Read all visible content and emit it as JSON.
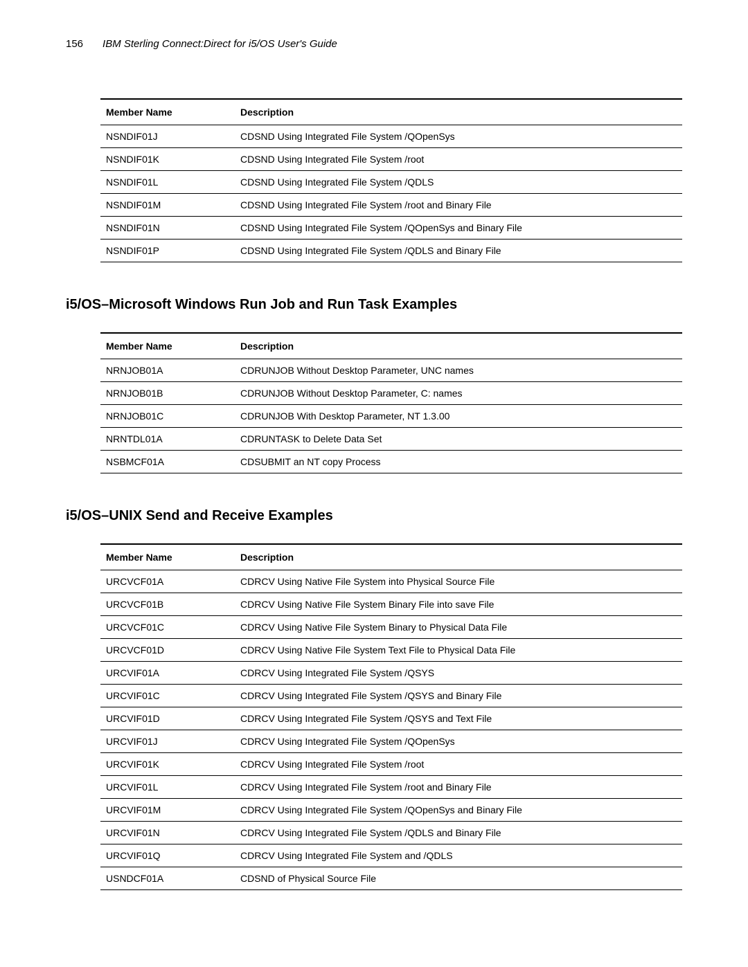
{
  "header": {
    "page_number": "156",
    "doc_title": "IBM Sterling Connect:Direct for i5/OS User's Guide"
  },
  "tables": [
    {
      "columns": [
        "Member Name",
        "Description"
      ],
      "rows": [
        [
          "NSNDIF01J",
          "CDSND Using Integrated File System /QOpenSys"
        ],
        [
          "NSNDIF01K",
          "CDSND Using Integrated File System /root"
        ],
        [
          "NSNDIF01L",
          "CDSND Using Integrated File System /QDLS"
        ],
        [
          "NSNDIF01M",
          "CDSND Using Integrated File System /root and Binary File"
        ],
        [
          "NSNDIF01N",
          "CDSND Using Integrated File System /QOpenSys and Binary File"
        ],
        [
          "NSNDIF01P",
          "CDSND Using Integrated File System /QDLS and Binary File"
        ]
      ]
    },
    {
      "heading": "i5/OS–Microsoft Windows Run Job and Run Task Examples",
      "columns": [
        "Member Name",
        "Description"
      ],
      "rows": [
        [
          "NRNJOB01A",
          "CDRUNJOB Without Desktop Parameter, UNC names"
        ],
        [
          "NRNJOB01B",
          "CDRUNJOB Without Desktop Parameter, C: names"
        ],
        [
          "NRNJOB01C",
          "CDRUNJOB With Desktop Parameter, NT 1.3.00"
        ],
        [
          "NRNTDL01A",
          "CDRUNTASK to Delete Data Set"
        ],
        [
          "NSBMCF01A",
          "CDSUBMIT an NT copy Process"
        ]
      ]
    },
    {
      "heading": "i5/OS–UNIX Send and Receive Examples",
      "columns": [
        "Member Name",
        "Description"
      ],
      "rows": [
        [
          "URCVCF01A",
          "CDRCV Using Native File System into Physical Source File"
        ],
        [
          "URCVCF01B",
          "CDRCV Using Native File System Binary File into save File"
        ],
        [
          "URCVCF01C",
          "CDRCV Using Native File System Binary to Physical Data File"
        ],
        [
          "URCVCF01D",
          "CDRCV Using Native File System Text File to Physical Data File"
        ],
        [
          "URCVIF01A",
          "CDRCV Using Integrated File System /QSYS"
        ],
        [
          "URCVIF01C",
          "CDRCV Using Integrated File System /QSYS and Binary File"
        ],
        [
          "URCVIF01D",
          "CDRCV Using Integrated File System /QSYS and Text File"
        ],
        [
          "URCVIF01J",
          "CDRCV Using Integrated File System /QOpenSys"
        ],
        [
          "URCVIF01K",
          "CDRCV Using Integrated File System /root"
        ],
        [
          "URCVIF01L",
          "CDRCV Using Integrated File System /root and Binary File"
        ],
        [
          "URCVIF01M",
          "CDRCV Using Integrated File System /QOpenSys and Binary File"
        ],
        [
          "URCVIF01N",
          "CDRCV Using Integrated File System /QDLS and Binary File"
        ],
        [
          "URCVIF01Q",
          "CDRCV Using Integrated File System and /QDLS"
        ],
        [
          "USNDCF01A",
          "CDSND of Physical Source File"
        ]
      ]
    }
  ]
}
